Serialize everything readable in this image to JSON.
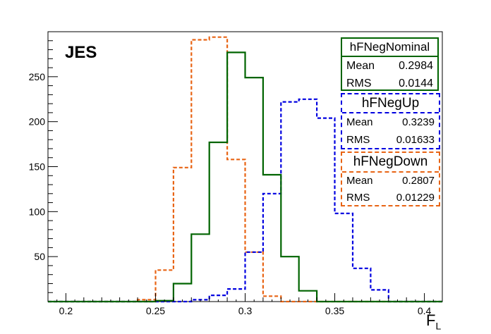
{
  "chart_data": {
    "type": "histogram",
    "annotation": "JES",
    "xlabel": "F",
    "xlabel_subscript": "L",
    "xlim": [
      0.19,
      0.41
    ],
    "ylim": [
      0,
      300
    ],
    "x_ticks": [
      0.2,
      0.25,
      0.3,
      0.35,
      0.4
    ],
    "x_tick_labels": [
      "0.2",
      "0.25",
      "0.3",
      "0.35",
      "0.4"
    ],
    "y_ticks": [
      50,
      100,
      150,
      200,
      250
    ],
    "y_tick_labels": [
      "50",
      "100",
      "150",
      "200",
      "250"
    ],
    "bin_edges": [
      0.19,
      0.2,
      0.21,
      0.22,
      0.23,
      0.24,
      0.25,
      0.26,
      0.27,
      0.28,
      0.29,
      0.3,
      0.31,
      0.32,
      0.33,
      0.34,
      0.35,
      0.36,
      0.37,
      0.38,
      0.39,
      0.4,
      0.41
    ],
    "series": [
      {
        "name": "hFNegNominal",
        "color": "#006400",
        "style": "solid",
        "values": [
          0,
          0,
          0,
          0,
          0,
          0,
          1,
          20,
          75,
          177,
          277,
          249,
          141,
          50,
          12,
          0,
          0,
          0,
          0,
          0,
          0,
          0
        ],
        "mean": "0.2984",
        "rms": "0.0144"
      },
      {
        "name": "hFNegUp",
        "color": "#0000e0",
        "style": "dashed",
        "values": [
          0,
          0,
          0,
          0,
          0,
          0,
          0,
          0,
          2,
          7,
          14,
          55,
          120,
          222,
          225,
          204,
          98,
          37,
          13,
          0,
          0,
          0
        ],
        "mean": "0.3239",
        "rms": "0.01633"
      },
      {
        "name": "hFNegDown",
        "color": "#e86414",
        "style": "dashed",
        "values": [
          0,
          0,
          0,
          0,
          0,
          2,
          35,
          149,
          291,
          294,
          158,
          55,
          6,
          0,
          0,
          0,
          0,
          0,
          0,
          0,
          0,
          0
        ],
        "mean": "0.2807",
        "rms": "0.01229"
      }
    ]
  },
  "stats": {
    "nominal": {
      "title": "hFNegNominal",
      "mean_label": "Mean",
      "mean": "0.2984",
      "rms_label": "RMS",
      "rms": "0.0144"
    },
    "up": {
      "title": "hFNegUp",
      "mean_label": "Mean",
      "mean": "0.3239",
      "rms_label": "RMS",
      "rms": "0.01633"
    },
    "down": {
      "title": "hFNegDown",
      "mean_label": "Mean",
      "mean": "0.2807",
      "rms_label": "RMS",
      "rms": "0.01229"
    }
  }
}
